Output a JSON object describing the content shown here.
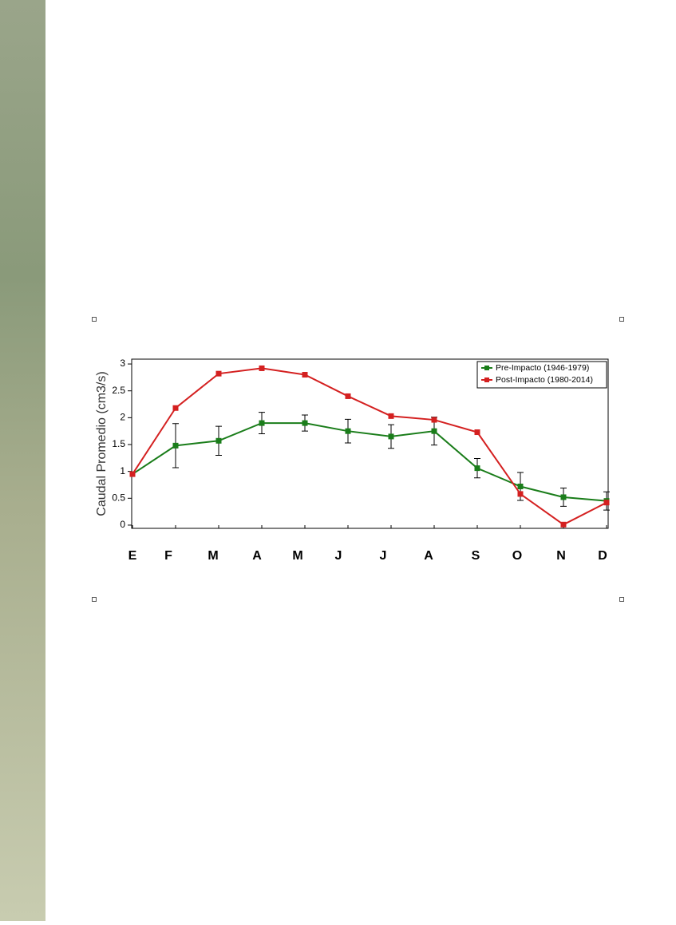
{
  "chart_data": {
    "type": "line",
    "y_label": "Caudal Promedio (cm3/s)",
    "categories": [
      "E",
      "F",
      "M",
      "A",
      "M",
      "J",
      "J",
      "A",
      "S",
      "O",
      "N",
      "D"
    ],
    "series": [
      {
        "name": "Pre-Impacto (1946-1979)",
        "color": "#1a7d1a",
        "values": [
          0.95,
          1.48,
          1.57,
          1.9,
          1.9,
          1.75,
          1.65,
          1.75,
          1.06,
          0.72,
          0.52,
          0.45
        ],
        "errors": [
          null,
          0.41,
          0.27,
          0.2,
          0.15,
          0.22,
          0.22,
          0.26,
          0.18,
          0.26,
          0.17,
          0.17
        ]
      },
      {
        "name": "Post-Impacto (1980-2014)",
        "color": "#d42020",
        "values": [
          0.95,
          2.18,
          2.82,
          2.92,
          2.8,
          2.4,
          2.03,
          1.96,
          1.73,
          0.58,
          0.01,
          0.42
        ]
      }
    ],
    "ylim": [
      -0.06,
      3.09
    ],
    "yticks": [
      0,
      0.5,
      1,
      1.5,
      2,
      2.5,
      3
    ],
    "legend": "top-right"
  }
}
